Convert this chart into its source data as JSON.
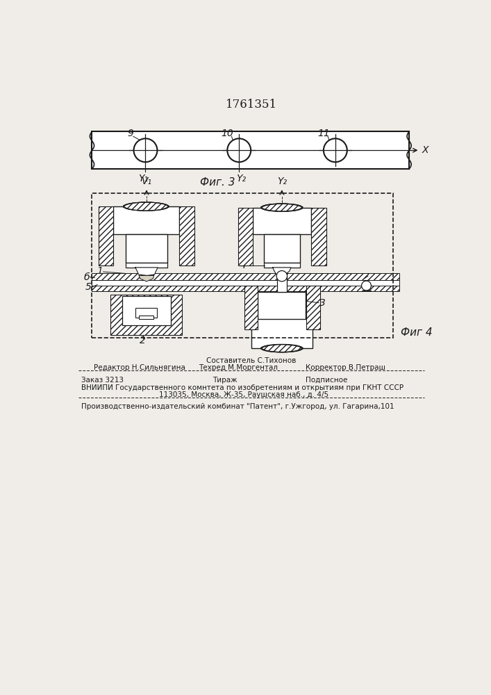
{
  "patent_number": "1761351",
  "fig3_label": "Фиг. 3",
  "fig4_label": "Фиг 4",
  "bg_color": "#f0ede8",
  "line_color": "#1a1a1a",
  "footer_sestavitel": "Составитель С.Тихонов",
  "footer_redaktor": "Редактор Н.Сильнягина",
  "footer_tehred": "Техред М.Моргентал",
  "footer_korrektor": "Корректор В.Петраш",
  "footer_zakaz": "Заказ 3213",
  "footer_tirazh": "Тираж",
  "footer_podpisnoe": "Подписное",
  "footer_vniipи": "ВНИИПИ Государственного комнтета по изобретениям и открытиям при ГКНТ СССР",
  "footer_address": "113035, Москва, Ж-35, Раушская наб., д. 4/5",
  "footer_publisher": "Производственно-издательский комбинат \"Патент\", г.Ужгород, ул. Гагарина,101"
}
